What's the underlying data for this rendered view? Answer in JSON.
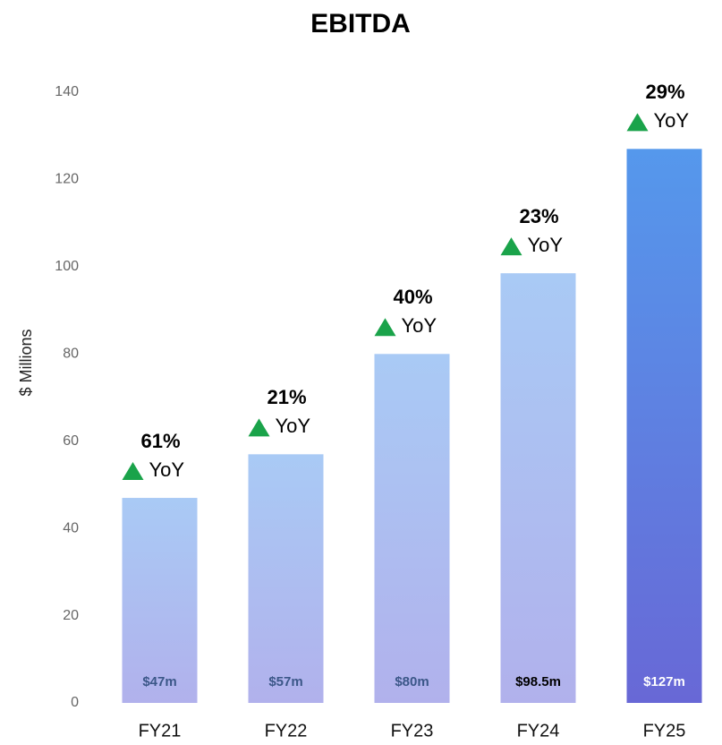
{
  "chart_data": {
    "type": "bar",
    "title": "EBITDA",
    "y_axis_label": "$ Millions",
    "categories": [
      "FY21",
      "FY22",
      "FY23",
      "FY24",
      "FY25"
    ],
    "values": [
      47,
      57,
      80,
      98.5,
      127
    ],
    "value_labels": [
      "$47m",
      "$57m",
      "$80m",
      "$98.5m",
      "$127m"
    ],
    "value_label_colors": [
      "#3b5788",
      "#3b5788",
      "#3b5788",
      "#000000",
      "#ffffff"
    ],
    "colors": [
      [
        "#a9caf5",
        "#b1b1ec"
      ],
      [
        "#a9caf5",
        "#b1b1ec"
      ],
      [
        "#a9caf5",
        "#b1b1ec"
      ],
      [
        "#a9caf5",
        "#b1b1ec"
      ],
      [
        "#5598ec",
        "#6868d6"
      ]
    ],
    "yoy": {
      "label": "YoY",
      "values": [
        61,
        21,
        40,
        23,
        29
      ],
      "value_labels": [
        "61%",
        "21%",
        "40%",
        "23%",
        "29%"
      ],
      "arrow_color": "#1aa34a"
    },
    "ylim": [
      0,
      140
    ],
    "yticks": [
      0,
      20,
      40,
      60,
      80,
      100,
      120,
      140
    ],
    "grid": false
  }
}
